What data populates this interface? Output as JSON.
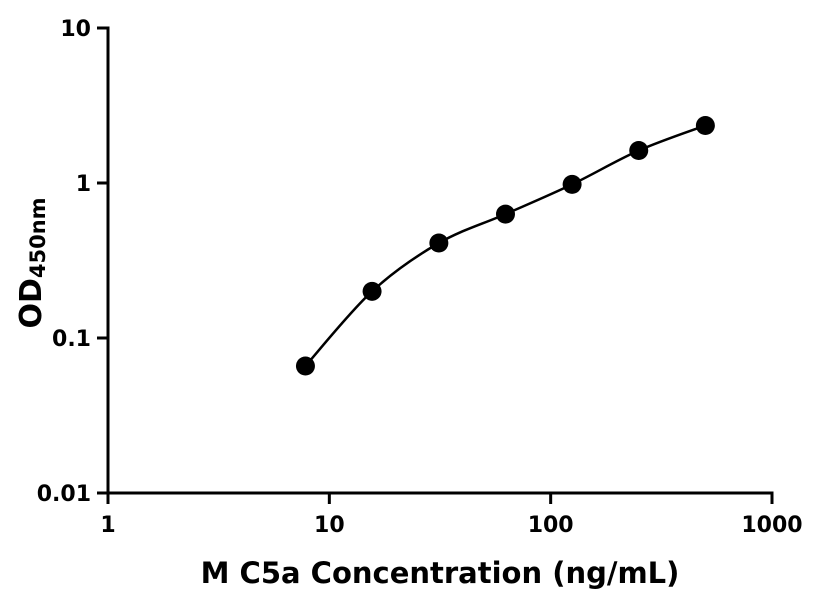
{
  "chart_data": {
    "type": "scatter",
    "title": "",
    "xlabel": "M C5a Concentration (ng/mL)",
    "ylabel": "OD",
    "ylabel_sub": "450nm",
    "x": [
      7.8,
      15.6,
      31.25,
      62.5,
      125,
      250,
      500
    ],
    "y": [
      0.066,
      0.2,
      0.41,
      0.63,
      0.98,
      1.62,
      2.35
    ],
    "xscale": "log",
    "yscale": "log",
    "xlim": [
      1,
      1000
    ],
    "ylim": [
      0.01,
      10
    ],
    "x_ticks": [
      "1",
      "10",
      "100",
      "1000"
    ],
    "y_ticks": [
      "0.01",
      "0.1",
      "1",
      "10"
    ],
    "grid": false,
    "legend": "none",
    "marker_color": "#000000",
    "line_color": "#000000",
    "axis_color": "#000000",
    "background_color": "#ffffff"
  }
}
